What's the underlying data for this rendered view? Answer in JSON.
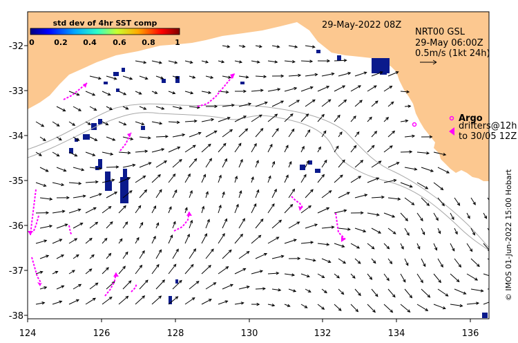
{
  "map": {
    "date_title": "29-May-2022 08Z",
    "product": {
      "line1": "NRT00 GSL",
      "line2": "29-May 06:00Z",
      "scale_label": "0.5m/s (1kt 24h)"
    },
    "colorbar": {
      "title": "std dev of 4hr SST comp",
      "ticks": [
        "0",
        "0.2",
        "0.4",
        "0.6",
        "0.8",
        "1"
      ],
      "colors": [
        "#00007f",
        "#0000ff",
        "#00aaff",
        "#2fffc8",
        "#c8ff2f",
        "#ffaa00",
        "#ff0000",
        "#7f0000"
      ]
    },
    "legend": {
      "argo_label": "Argo",
      "drifters_line1": "drifters@12h",
      "drifters_line2": "to 30/05 12Z"
    },
    "x_ticks": [
      "124",
      "126",
      "128",
      "130",
      "132",
      "134",
      "136"
    ],
    "y_ticks": [
      "-32",
      "-33",
      "-34",
      "-35",
      "-36",
      "-37",
      "-38"
    ],
    "credit": "© IMOS 01-Jun-2022 15:00 Hobart",
    "colors": {
      "land": "#fcc890",
      "ocean": "#ffffff",
      "drifter": "#ff00ff",
      "bathymetry": "#a8a8a8",
      "sst_patch": "#0a1a8c"
    }
  }
}
